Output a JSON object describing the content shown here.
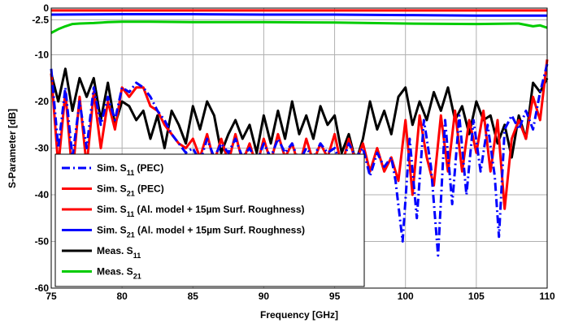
{
  "chart_data": {
    "type": "line",
    "title": "",
    "xlabel": "Frequency [GHz]",
    "ylabel": "S-Parameter [dB]",
    "xlim": [
      75,
      110
    ],
    "ylim": [
      -60,
      0
    ],
    "x_ticks": [
      "75",
      "80",
      "85",
      "90",
      "95",
      "100",
      "105",
      "110"
    ],
    "y_ticks": [
      "0",
      "-2.5",
      "-10",
      "-20",
      "-30",
      "-40",
      "-50",
      "-60"
    ],
    "grid": true,
    "legend_position": "bottom-left",
    "series": [
      {
        "name": "Sim. S11 (PEC)",
        "label_main": "Sim. S",
        "label_sub": "11",
        "label_suffix": " (PEC)",
        "color": "#0000ff",
        "style": "dashdot",
        "x": [
          75,
          75.5,
          76,
          76.5,
          77,
          77.5,
          78,
          78.5,
          79,
          79.5,
          80,
          80.5,
          81,
          81.5,
          82,
          82.5,
          83,
          83.5,
          84,
          84.5,
          85,
          85.5,
          86,
          86.5,
          87,
          87.5,
          88,
          88.5,
          89,
          89.5,
          90,
          90.5,
          91,
          91.5,
          92,
          92.5,
          93,
          93.5,
          94,
          94.5,
          95,
          95.5,
          96,
          96.5,
          97,
          97.5,
          98,
          98.5,
          99,
          99.3,
          99.8,
          100.3,
          100.8,
          101.3,
          101.8,
          102.3,
          102.8,
          103.3,
          103.8,
          104.3,
          104.8,
          105.3,
          105.8,
          106.3,
          106.6,
          107,
          107.5,
          108,
          108.5,
          109,
          109.5,
          110
        ],
        "y": [
          -13,
          -30,
          -17,
          -32,
          -20,
          -30,
          -17,
          -25,
          -19,
          -24,
          -17,
          -18,
          -16,
          -17,
          -19,
          -22,
          -24,
          -27,
          -29,
          -31,
          -30,
          -33,
          -28,
          -32,
          -29,
          -31,
          -28,
          -32,
          -30,
          -33,
          -29,
          -32,
          -28,
          -31,
          -29,
          -33,
          -30,
          -32,
          -29,
          -31,
          -30,
          -34,
          -29,
          -32,
          -30,
          -36,
          -31,
          -34,
          -32,
          -37,
          -50,
          -28,
          -45,
          -24,
          -34,
          -53,
          -24,
          -42,
          -23,
          -40,
          -24,
          -35,
          -25,
          -36,
          -49,
          -26,
          -23,
          -26,
          -22,
          -26,
          -18,
          -12
        ]
      },
      {
        "name": "Sim. S21 (PEC)",
        "label_main": "Sim. S",
        "label_sub": "21",
        "label_suffix": " (PEC)",
        "color": "#ff0000",
        "style": "solid",
        "x": [
          75,
          80,
          85,
          90,
          95,
          100,
          105,
          110
        ],
        "y": [
          -0.5,
          -0.5,
          -0.5,
          -0.5,
          -0.5,
          -0.5,
          -0.5,
          -0.5
        ]
      },
      {
        "name": "Sim. S11 (Al. model + 15µm Surf. Roughness)",
        "label_main": "Sim. S",
        "label_sub": "11",
        "label_suffix": " (Al. model + 15µm Surf. Roughness)",
        "color": "#ff0000",
        "style": "solid",
        "x": [
          75,
          75.5,
          76,
          76.5,
          77,
          77.5,
          78,
          78.5,
          79,
          79.5,
          80,
          80.5,
          81,
          81.5,
          82,
          82.5,
          83,
          83.5,
          84,
          84.5,
          85,
          85.5,
          86,
          86.5,
          87,
          87.5,
          88,
          88.5,
          89,
          89.5,
          90,
          90.5,
          91,
          91.5,
          92,
          92.5,
          93,
          93.5,
          94,
          94.5,
          95,
          95.5,
          96,
          96.5,
          97,
          97.5,
          98,
          98.5,
          99,
          99.5,
          100,
          100.5,
          101,
          101.5,
          102,
          102.5,
          103,
          103.5,
          104,
          104.5,
          105,
          105.5,
          106,
          106.5,
          107,
          107.5,
          108,
          108.5,
          109,
          109.5,
          110
        ],
        "y": [
          -14,
          -34,
          -18,
          -36,
          -19,
          -34,
          -18,
          -30,
          -20,
          -26,
          -17,
          -19,
          -17,
          -17,
          -21,
          -22,
          -25,
          -27,
          -29,
          -30,
          -28,
          -32,
          -27,
          -33,
          -28,
          -33,
          -27,
          -33,
          -29,
          -34,
          -28,
          -33,
          -27,
          -32,
          -29,
          -34,
          -28,
          -33,
          -29,
          -32,
          -27,
          -34,
          -28,
          -33,
          -29,
          -35,
          -30,
          -35,
          -32,
          -37,
          -24,
          -40,
          -23,
          -32,
          -38,
          -23,
          -35,
          -22,
          -35,
          -24,
          -31,
          -22,
          -35,
          -24,
          -43,
          -28,
          -24,
          -28,
          -19,
          -24,
          -11
        ]
      },
      {
        "name": "Sim. S21 (Al. model + 15µm Surf. Roughness)",
        "label_main": "Sim. S",
        "label_sub": "21",
        "label_suffix": " (Al. model + 15µm Surf. Roughness)",
        "color": "#0000ff",
        "style": "solid",
        "x": [
          75,
          80,
          85,
          90,
          95,
          100,
          105,
          110
        ],
        "y": [
          -1.4,
          -1.3,
          -1.3,
          -1.4,
          -1.4,
          -1.5,
          -1.6,
          -1.6
        ]
      },
      {
        "name": "Meas. S11",
        "label_main": "Meas. S",
        "label_sub": "11",
        "label_suffix": "",
        "color": "#000000",
        "style": "solid",
        "x": [
          75,
          75.5,
          76,
          76.5,
          77,
          77.5,
          78,
          78.5,
          79,
          79.5,
          80,
          80.5,
          81,
          81.5,
          82,
          82.5,
          83,
          83.5,
          84,
          84.5,
          85,
          85.5,
          86,
          86.5,
          87,
          87.5,
          88,
          88.5,
          89,
          89.5,
          90,
          90.5,
          91,
          91.5,
          92,
          92.5,
          93,
          93.5,
          94,
          94.5,
          95,
          95.5,
          96,
          96.5,
          97,
          97.5,
          98,
          98.5,
          99,
          99.5,
          100,
          100.5,
          101,
          101.5,
          102,
          102.5,
          103,
          103.5,
          104,
          104.5,
          105,
          105.5,
          106,
          106.5,
          107,
          107.5,
          108,
          108.5,
          109,
          109.5,
          110
        ],
        "y": [
          -14,
          -20,
          -13,
          -22,
          -15,
          -19,
          -15,
          -24,
          -16,
          -25,
          -20,
          -21,
          -24,
          -22,
          -28,
          -23,
          -30,
          -22,
          -25,
          -29,
          -21,
          -26,
          -20,
          -23,
          -31,
          -27,
          -24,
          -28,
          -25,
          -31,
          -23,
          -29,
          -22,
          -28,
          -20,
          -27,
          -23,
          -28,
          -21,
          -25,
          -23,
          -31,
          -27,
          -33,
          -28,
          -20,
          -26,
          -22,
          -27,
          -19,
          -17,
          -25,
          -20,
          -24,
          -18,
          -22,
          -17,
          -24,
          -21,
          -27,
          -20,
          -24,
          -23,
          -29,
          -25,
          -32,
          -23,
          -28,
          -16,
          -18,
          -15
        ]
      },
      {
        "name": "Meas. S21",
        "label_main": "Meas. S",
        "label_sub": "21",
        "label_suffix": "",
        "color": "#00cc00",
        "style": "solid",
        "x": [
          75,
          75.5,
          76,
          76.5,
          77,
          78,
          79,
          80,
          82,
          85,
          90,
          95,
          100,
          105,
          108,
          109,
          109.5,
          110
        ],
        "y": [
          -5.3,
          -4.5,
          -3.9,
          -3.4,
          -3.3,
          -3.2,
          -3.0,
          -2.9,
          -2.9,
          -3.0,
          -3.0,
          -3.1,
          -3.3,
          -3.4,
          -3.3,
          -3.9,
          -3.7,
          -4.2
        ]
      }
    ]
  }
}
